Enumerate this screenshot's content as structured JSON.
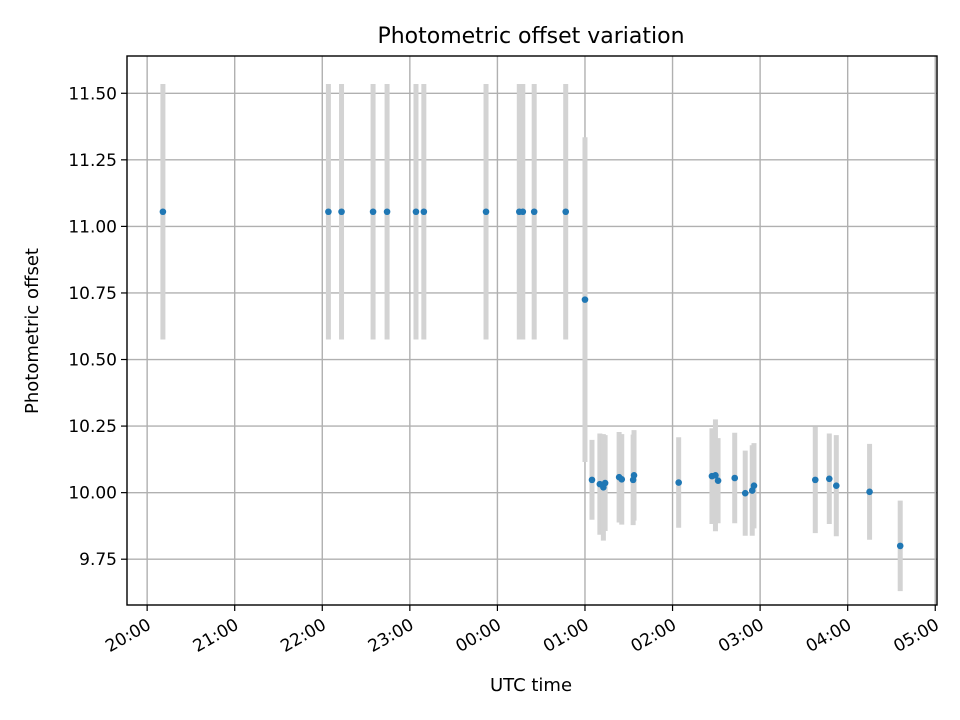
{
  "chart_data": {
    "type": "scatter",
    "title": "Photometric offset variation",
    "xlabel": "UTC time",
    "ylabel": "Photometric offset",
    "x_unit": "hours (UTC, continuing past midnight: 24.0 = 00:00)",
    "xlim": [
      19.77,
      29.02
    ],
    "ylim": [
      9.578,
      11.64
    ],
    "grid": true,
    "x_ticks": [
      {
        "value": 20,
        "label": "20:00"
      },
      {
        "value": 21,
        "label": "21:00"
      },
      {
        "value": 22,
        "label": "22:00"
      },
      {
        "value": 23,
        "label": "23:00"
      },
      {
        "value": 24,
        "label": "00:00"
      },
      {
        "value": 25,
        "label": "01:00"
      },
      {
        "value": 26,
        "label": "02:00"
      },
      {
        "value": 27,
        "label": "03:00"
      },
      {
        "value": 28,
        "label": "04:00"
      },
      {
        "value": 29,
        "label": "05:00"
      }
    ],
    "y_ticks": [
      {
        "value": 9.75,
        "label": "9.75"
      },
      {
        "value": 10.0,
        "label": "10.00"
      },
      {
        "value": 10.25,
        "label": "10.25"
      },
      {
        "value": 10.5,
        "label": "10.50"
      },
      {
        "value": 10.75,
        "label": "10.75"
      },
      {
        "value": 11.0,
        "label": "11.00"
      },
      {
        "value": 11.25,
        "label": "11.25"
      },
      {
        "value": 11.5,
        "label": "11.50"
      }
    ],
    "series": [
      {
        "marker_color": "#1f77b4",
        "errorbar_color": "#d3d3d3",
        "points": [
          {
            "x": 20.18,
            "y": 11.055,
            "err": 0.48
          },
          {
            "x": 22.07,
            "y": 11.055,
            "err": 0.48
          },
          {
            "x": 22.22,
            "y": 11.055,
            "err": 0.48
          },
          {
            "x": 22.58,
            "y": 11.055,
            "err": 0.48
          },
          {
            "x": 22.74,
            "y": 11.055,
            "err": 0.48
          },
          {
            "x": 23.07,
            "y": 11.055,
            "err": 0.48
          },
          {
            "x": 23.16,
            "y": 11.055,
            "err": 0.48
          },
          {
            "x": 23.87,
            "y": 11.055,
            "err": 0.48
          },
          {
            "x": 24.25,
            "y": 11.055,
            "err": 0.48
          },
          {
            "x": 24.29,
            "y": 11.055,
            "err": 0.48
          },
          {
            "x": 24.42,
            "y": 11.055,
            "err": 0.48
          },
          {
            "x": 24.78,
            "y": 11.055,
            "err": 0.48
          },
          {
            "x": 25.0,
            "y": 10.725,
            "err": 0.61
          },
          {
            "x": 25.08,
            "y": 10.048,
            "err": 0.15
          },
          {
            "x": 25.17,
            "y": 10.032,
            "err": 0.19
          },
          {
            "x": 25.21,
            "y": 10.02,
            "err": 0.2
          },
          {
            "x": 25.23,
            "y": 10.036,
            "err": 0.18
          },
          {
            "x": 25.39,
            "y": 10.058,
            "err": 0.17
          },
          {
            "x": 25.42,
            "y": 10.05,
            "err": 0.17
          },
          {
            "x": 25.55,
            "y": 10.048,
            "err": 0.17
          },
          {
            "x": 25.56,
            "y": 10.065,
            "err": 0.17
          },
          {
            "x": 26.07,
            "y": 10.038,
            "err": 0.17
          },
          {
            "x": 26.45,
            "y": 10.062,
            "err": 0.18
          },
          {
            "x": 26.49,
            "y": 10.065,
            "err": 0.21
          },
          {
            "x": 26.52,
            "y": 10.045,
            "err": 0.16
          },
          {
            "x": 26.71,
            "y": 10.055,
            "err": 0.17
          },
          {
            "x": 26.83,
            "y": 9.998,
            "err": 0.16
          },
          {
            "x": 26.91,
            "y": 10.008,
            "err": 0.17
          },
          {
            "x": 26.93,
            "y": 10.026,
            "err": 0.16
          },
          {
            "x": 27.63,
            "y": 10.048,
            "err": 0.2
          },
          {
            "x": 27.79,
            "y": 10.052,
            "err": 0.17
          },
          {
            "x": 27.87,
            "y": 10.026,
            "err": 0.19
          },
          {
            "x": 28.25,
            "y": 10.003,
            "err": 0.18
          },
          {
            "x": 28.6,
            "y": 9.8,
            "err": 0.17
          }
        ]
      }
    ]
  }
}
